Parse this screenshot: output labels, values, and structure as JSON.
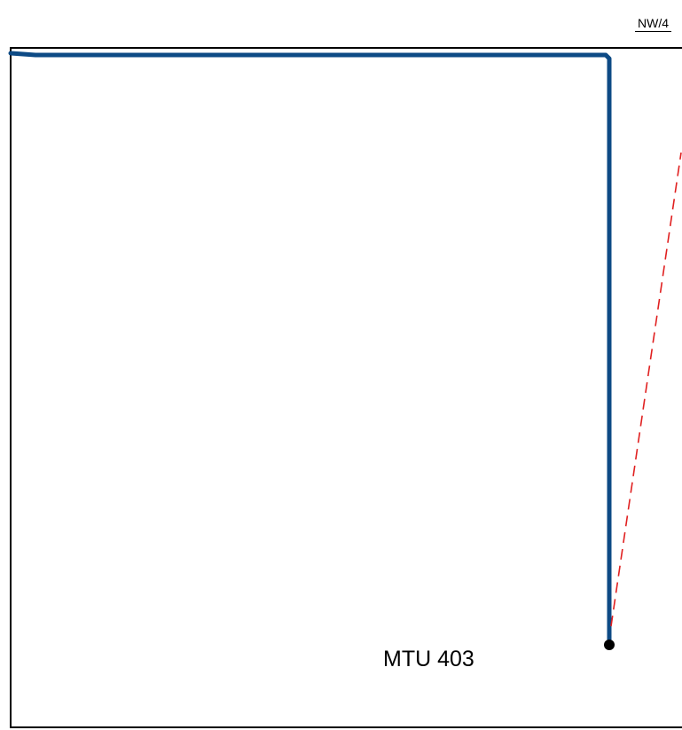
{
  "sheet_reference": "NW/4",
  "well": {
    "label": "MTU 403",
    "marker": "well-marker"
  },
  "colors": {
    "border": "#000000",
    "wellbore_path": "#0d4a85",
    "projection_line": "#e02020",
    "well_marker": "#000000"
  }
}
